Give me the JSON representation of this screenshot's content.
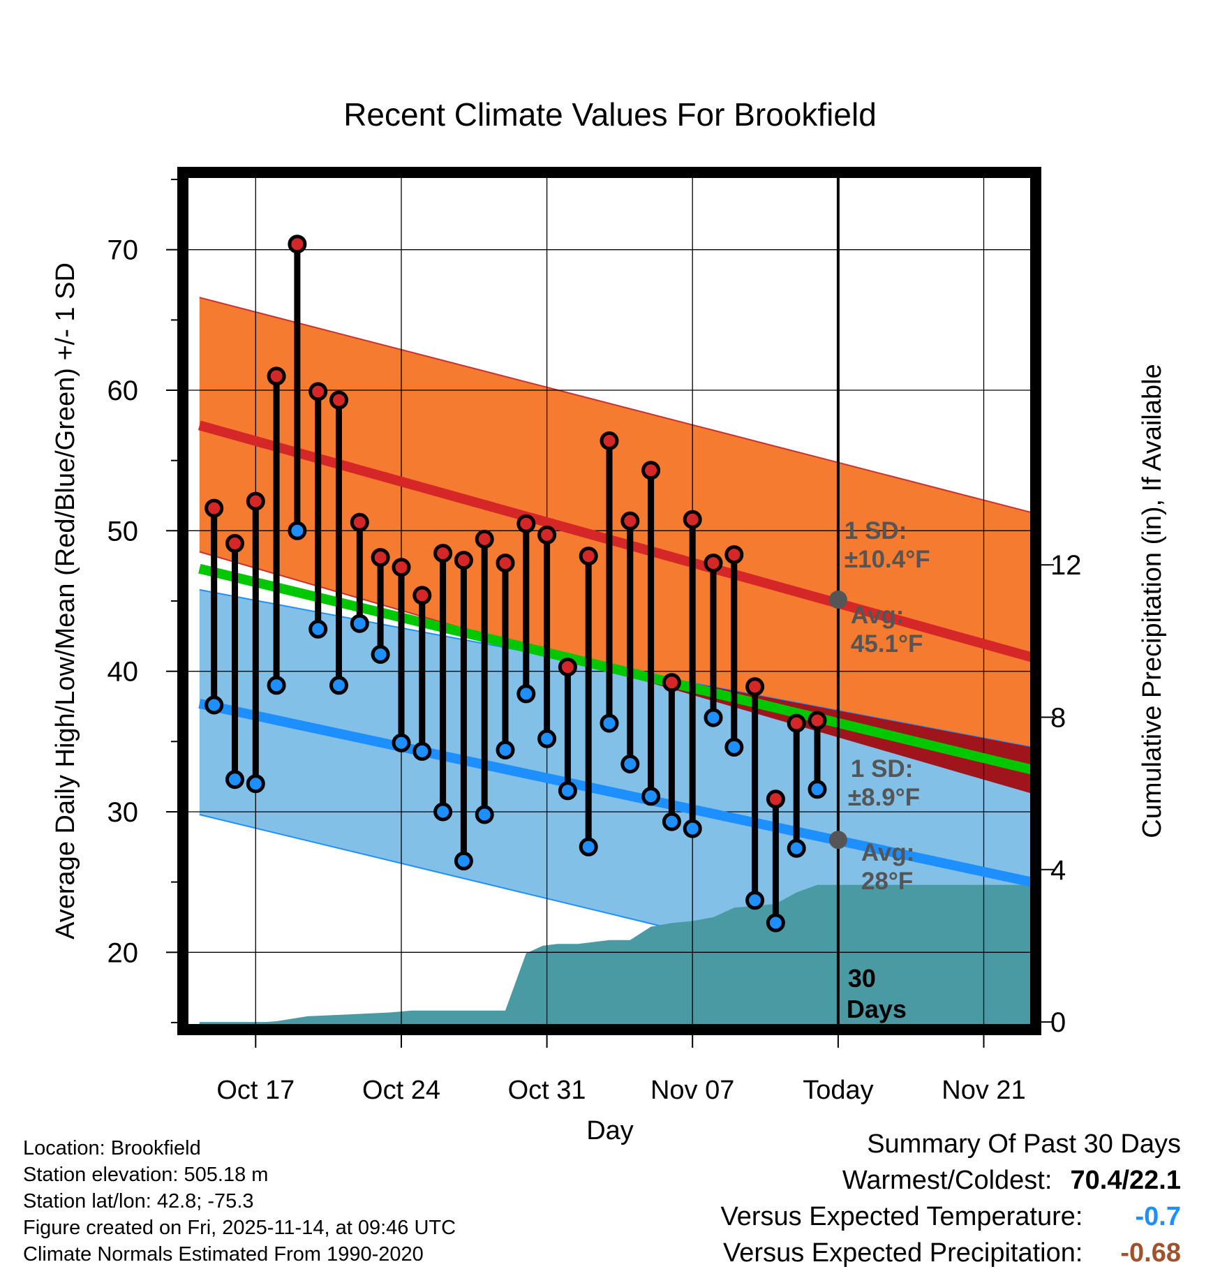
{
  "title": "Recent Climate Values For Brookfield",
  "chart_data": {
    "type": "line",
    "title": "Recent Climate Values For Brookfield",
    "xlabel": "Day",
    "ylabel_left": "Average Daily High/Low/Mean (Red/Blue/Green) +/- 1 SD",
    "ylabel_right": "Cumulative Precipitation (in), If Available",
    "xlim": [
      -3.5,
      37.5
    ],
    "ylim_left": [
      14.5,
      75.5
    ],
    "ylim_right": [
      -0.2,
      22.3
    ],
    "yticks_left": [
      20,
      30,
      40,
      50,
      60,
      70
    ],
    "yticks_right": [
      0,
      4,
      8,
      12
    ],
    "xticks": [
      {
        "day": 0,
        "label": "Oct 17"
      },
      {
        "day": 7,
        "label": "Oct 24"
      },
      {
        "day": 14,
        "label": "Oct 31"
      },
      {
        "day": 21,
        "label": "Nov 07"
      },
      {
        "day": 28,
        "label": "Today"
      },
      {
        "day": 35,
        "label": "Nov 21"
      }
    ],
    "normal_high": {
      "start_day": -2.7,
      "end_day": 37.3,
      "mean": [
        57.5,
        41.0
      ],
      "upper": [
        66.6,
        51.3
      ],
      "lower": [
        48.5,
        31.3
      ],
      "sd_label": "1 SD:",
      "sd_value": "±10.4°F",
      "avg_label": "Avg:",
      "avg_value": "45.1°F",
      "today_avg": 45.1
    },
    "normal_low": {
      "start_day": -2.7,
      "end_day": 37.3,
      "mean": [
        37.7,
        25.0
      ],
      "upper": [
        45.8,
        34.6
      ],
      "lower": [
        29.8,
        15.5
      ],
      "sd_label": "1 SD:",
      "sd_value": "±8.9°F",
      "avg_label": "Avg:",
      "avg_value": "28°F",
      "today_avg": 28.0
    },
    "normal_mean": {
      "start_day": -2.7,
      "end_day": 37.3,
      "values": [
        47.3,
        33.0
      ]
    },
    "daily": [
      {
        "day": -2,
        "high": 51.6,
        "low": 37.6
      },
      {
        "day": -1,
        "high": 49.1,
        "low": 32.3
      },
      {
        "day": 0,
        "high": 52.1,
        "low": 32.0
      },
      {
        "day": 1,
        "high": 61.0,
        "low": 39.0
      },
      {
        "day": 2,
        "high": 70.4,
        "low": 50.0
      },
      {
        "day": 3,
        "high": 59.9,
        "low": 43.0
      },
      {
        "day": 4,
        "high": 59.3,
        "low": 39.0
      },
      {
        "day": 5,
        "high": 50.6,
        "low": 43.4
      },
      {
        "day": 6,
        "high": 48.1,
        "low": 41.2
      },
      {
        "day": 7,
        "high": 47.4,
        "low": 34.9
      },
      {
        "day": 8,
        "high": 45.4,
        "low": 34.3
      },
      {
        "day": 9,
        "high": 48.4,
        "low": 30.0
      },
      {
        "day": 10,
        "high": 47.9,
        "low": 26.5
      },
      {
        "day": 11,
        "high": 49.4,
        "low": 29.8
      },
      {
        "day": 12,
        "high": 47.7,
        "low": 34.4
      },
      {
        "day": 13,
        "high": 50.5,
        "low": 38.4
      },
      {
        "day": 14,
        "high": 49.7,
        "low": 35.2
      },
      {
        "day": 15,
        "high": 40.3,
        "low": 31.5
      },
      {
        "day": 16,
        "high": 48.2,
        "low": 27.5
      },
      {
        "day": 17,
        "high": 56.4,
        "low": 36.3
      },
      {
        "day": 18,
        "high": 50.7,
        "low": 33.4
      },
      {
        "day": 19,
        "high": 54.3,
        "low": 31.1
      },
      {
        "day": 20,
        "high": 39.2,
        "low": 29.3
      },
      {
        "day": 21,
        "high": 50.8,
        "low": 28.8
      },
      {
        "day": 22,
        "high": 47.7,
        "low": 36.7
      },
      {
        "day": 23,
        "high": 48.3,
        "low": 34.6
      },
      {
        "day": 24,
        "high": 38.9,
        "low": 23.7
      },
      {
        "day": 25,
        "high": 30.9,
        "low": 22.1
      },
      {
        "day": 26,
        "high": 36.3,
        "low": 27.4
      },
      {
        "day": 27,
        "high": 36.5,
        "low": 31.6
      }
    ],
    "precip_cumulative": {
      "days": [
        -2.7,
        0.5,
        1.0,
        2.5,
        4.5,
        6.5,
        7.5,
        8.5,
        11.0,
        12.0,
        13.0,
        13.8,
        14.5,
        15.5,
        17.0,
        18.0,
        19.0,
        20.0,
        21.0,
        22.0,
        23.0,
        24.0,
        25.0,
        26.0,
        27.0,
        28.0,
        37.3
      ],
      "values": [
        0.0,
        0.0,
        0.02,
        0.15,
        0.2,
        0.25,
        0.3,
        0.3,
        0.3,
        0.3,
        1.8,
        2.0,
        2.05,
        2.05,
        2.15,
        2.15,
        2.5,
        2.6,
        2.65,
        2.75,
        3.0,
        3.05,
        3.1,
        3.4,
        3.6,
        3.6,
        3.6
      ]
    },
    "today_day": 28,
    "period_label": "30",
    "period_unit": "Days"
  },
  "station": {
    "location": "Location: Brookfield",
    "elevation": "Station elevation: 505.18 m",
    "latlon": "Station lat/lon: 42.8; -75.3",
    "created": "Figure created on Fri, 2025-11-14, at 09:46 UTC",
    "normals": "Climate Normals Estimated From 1990-2020"
  },
  "summary": {
    "title": "Summary Of Past 30 Days",
    "warm_cold_label": "Warmest/Coldest:",
    "warm_cold_value": "70.4/22.1",
    "temp_label": "Versus Expected Temperature:",
    "temp_value": "-0.7",
    "precip_label": "Versus Expected Precipitation:",
    "precip_value": "-0.68"
  },
  "colors": {
    "high_band": "#f47b2f",
    "high_line": "#d62728",
    "low_band": "#82c0e8",
    "low_line": "#1e8fff",
    "mean_line": "#00c800",
    "overlap": "#a0141c",
    "precip": "#4a9aa4",
    "temp_value": "#1e8fff",
    "precip_value": "#a0522d",
    "annotation": "#555555"
  }
}
